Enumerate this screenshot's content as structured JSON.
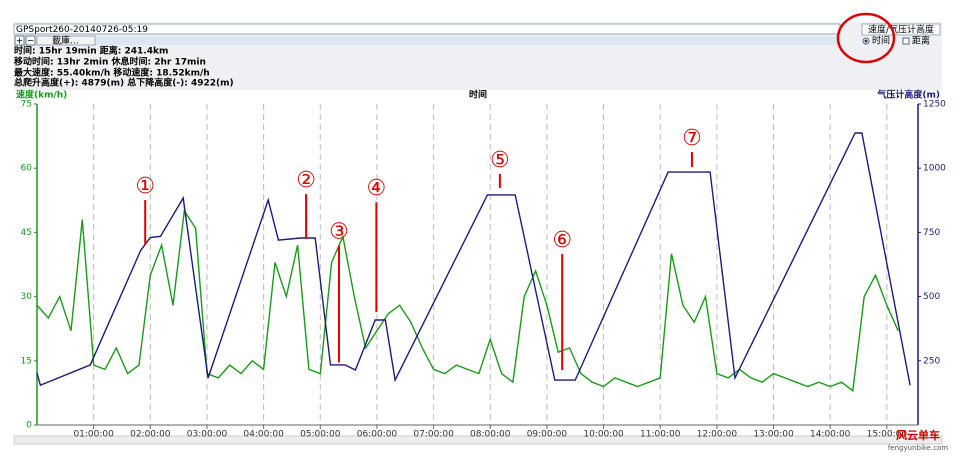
{
  "toolbar": {
    "file": "GPSport260-20140726-05:19",
    "buttons": [
      "+",
      "−",
      "載庫..."
    ],
    "view": "速度/气压计高度",
    "options": [
      "时间",
      "距离"
    ]
  },
  "stats": [
    "时间: 15hr 19min  距离: 241.4km",
    "移动时间: 13hr 2min  休息时间: 2hr 17min",
    "最大速度: 55.40km/h  移动速度: 18.52km/h",
    "总爬升高度(+): 4879(m)  总下降高度(-): 4922(m)"
  ],
  "watermark": {
    "name": "风云单车",
    "url": "fengyunbike.com"
  },
  "chart_data": {
    "type": "line",
    "title": "时间",
    "y_label": "速度(km/h)",
    "y2_label": "气压计高度(m)",
    "xlim": [
      0,
      15.55
    ],
    "ylim": [
      0,
      75
    ],
    "y2lim": [
      0,
      1250
    ],
    "grid": true,
    "xticks": [
      {
        "value": 1,
        "label": "01:00:00"
      },
      {
        "value": 2,
        "label": "02:00:00"
      },
      {
        "value": 3,
        "label": "03:00:00"
      },
      {
        "value": 4,
        "label": "04:00:00"
      },
      {
        "value": 5,
        "label": "05:00:00"
      },
      {
        "value": 6,
        "label": "06:00:00"
      },
      {
        "value": 7,
        "label": "07:00:00"
      },
      {
        "value": 8,
        "label": "08:00:00"
      },
      {
        "value": 9,
        "label": "09:00:00"
      },
      {
        "value": 10,
        "label": "10:00:00"
      },
      {
        "value": 11,
        "label": "11:00:00"
      },
      {
        "value": 12,
        "label": "12:00:00"
      },
      {
        "value": 13,
        "label": "13:00:00"
      },
      {
        "value": 14,
        "label": "14:00:00"
      },
      {
        "value": 15,
        "label": "15:00:00"
      }
    ],
    "yticks": [
      0,
      15,
      30,
      45,
      60,
      75
    ],
    "y2ticks": [
      250,
      500,
      750,
      1000,
      1250
    ],
    "series": [
      {
        "color": "#1a9a1a",
        "x": [
          0,
          0.2,
          0.4,
          0.6,
          0.8,
          1.0,
          1.2,
          1.4,
          1.6,
          1.8,
          2.0,
          2.2,
          2.4,
          2.6,
          2.8,
          3.0,
          3.2,
          3.4,
          3.6,
          3.8,
          4.0,
          4.2,
          4.4,
          4.6,
          4.8,
          5.0,
          5.2,
          5.4,
          5.6,
          5.8,
          6.0,
          6.2,
          6.4,
          6.6,
          6.8,
          7.0,
          7.2,
          7.4,
          7.6,
          7.8,
          8.0,
          8.2,
          8.4,
          8.6,
          8.8,
          9.0,
          9.2,
          9.4,
          9.6,
          9.8,
          10.0,
          10.2,
          10.4,
          10.6,
          10.8,
          11.0,
          11.2,
          11.4,
          11.6,
          11.8,
          12.0,
          12.2,
          12.4,
          12.6,
          12.8,
          13.0,
          13.2,
          13.4,
          13.6,
          13.8,
          14.0,
          14.2,
          14.4,
          14.6,
          14.8,
          15.0,
          15.2
        ],
        "values": [
          28,
          25,
          30,
          22,
          48,
          14,
          13,
          18,
          12,
          14,
          35,
          42,
          28,
          50,
          46,
          12,
          11,
          14,
          12,
          15,
          13,
          38,
          30,
          42,
          13,
          12,
          38,
          44,
          30,
          18,
          22,
          26,
          28,
          24,
          18,
          13,
          12,
          14,
          13,
          12,
          20,
          12,
          10,
          30,
          36,
          28,
          17,
          18,
          12,
          10,
          9,
          11,
          10,
          9,
          10,
          11,
          40,
          28,
          24,
          30,
          12,
          11,
          13,
          11,
          10,
          12,
          11,
          10,
          9,
          10,
          9,
          10,
          8,
          30,
          35,
          28,
          22
        ]
      },
      {
        "color": "#1c1c7c",
        "axis": "y2",
        "x": [
          0,
          0.06,
          0.94,
          1.83,
          2.0,
          2.18,
          2.58,
          3.02,
          4.08,
          4.26,
          4.65,
          4.91,
          5.18,
          5.44,
          5.62,
          5.97,
          6.15,
          6.32,
          7.95,
          8.44,
          9.14,
          9.5,
          11.14,
          11.88,
          12.32,
          14.44,
          14.56,
          15.41
        ],
        "values": [
          202,
          155,
          234,
          680,
          730,
          735,
          884,
          183,
          876,
          720,
          728,
          728,
          234,
          234,
          214,
          409,
          409,
          175,
          896,
          896,
          175,
          175,
          985,
          985,
          183,
          1137,
          1137,
          155
        ]
      }
    ],
    "annotations": [
      {
        "text": "①",
        "x": 1.91,
        "y": 55.6
      },
      {
        "text": "②",
        "x": 4.75,
        "y": 57
      },
      {
        "text": "③",
        "x": 5.33,
        "y": 45
      },
      {
        "text": "④",
        "x": 5.99,
        "y": 55.1
      },
      {
        "text": "⑤",
        "x": 8.17,
        "y": 61.7
      },
      {
        "text": "⑥",
        "x": 9.27,
        "y": 43
      },
      {
        "text": "⑦",
        "x": 11.56,
        "y": 66.8
      }
    ]
  }
}
